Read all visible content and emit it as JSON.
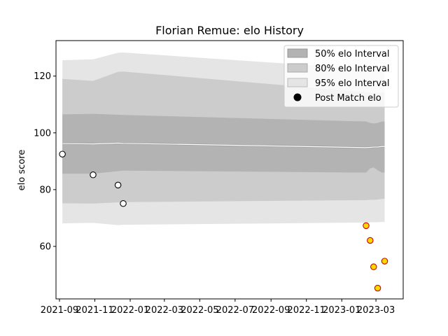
{
  "chart_data": {
    "type": "line",
    "title": "Florian Remue: elo History",
    "ylabel": "elo score",
    "xlabel": "",
    "ylim": [
      41.5,
      132.5
    ],
    "xlim": [
      "2021-08-26",
      "2023-04-17"
    ],
    "yticks": [
      60,
      80,
      100,
      120
    ],
    "xticks": [
      {
        "date": "2021-09-01",
        "label": "2021-09"
      },
      {
        "date": "2021-11-01",
        "label": "2021-11"
      },
      {
        "date": "2022-01-01",
        "label": "2022-01"
      },
      {
        "date": "2022-03-01",
        "label": "2022-03"
      },
      {
        "date": "2022-05-01",
        "label": "2022-05"
      },
      {
        "date": "2022-07-01",
        "label": "2022-07"
      },
      {
        "date": "2022-09-01",
        "label": "2022-09"
      },
      {
        "date": "2022-11-01",
        "label": "2022-11"
      },
      {
        "date": "2023-01-01",
        "label": "2023-01"
      },
      {
        "date": "2023-03-01",
        "label": "2023-03"
      }
    ],
    "grid": false,
    "legend_position": "top-right",
    "legend": [
      {
        "key": "i50",
        "label": "50% elo Interval"
      },
      {
        "key": "i80",
        "label": "80% elo Interval"
      },
      {
        "key": "i95",
        "label": "95% elo Interval"
      },
      {
        "key": "post",
        "label": "Post Match elo"
      }
    ],
    "colors": {
      "i50": "#b3b3b3",
      "i80": "#cccccc",
      "i95": "#e5e5e5",
      "mean_line": "#ffffff",
      "mean_line_shadow": "#999999",
      "marker_edge_old": "#000000",
      "marker_fill_old": "#ffffff",
      "marker_edge_new": "#cc0000",
      "marker_fill_new": "#ffd700"
    },
    "series": {
      "x": [
        "2021-09-06",
        "2021-10-29",
        "2021-12-11",
        "2021-12-20",
        "2023-02-12",
        "2023-02-19",
        "2023-02-25",
        "2023-03-04",
        "2023-03-11",
        "2023-03-16"
      ],
      "mean": [
        96.2,
        96.1,
        96.4,
        96.3,
        94.8,
        94.9,
        95.0,
        95.0,
        95.2,
        95.2
      ],
      "lo50": [
        85.6,
        85.6,
        86.5,
        86.7,
        86.0,
        87.5,
        87.8,
        86.8,
        86.0,
        86.0
      ],
      "hi50": [
        106.5,
        106.7,
        106.4,
        106.3,
        104.0,
        103.5,
        103.3,
        103.5,
        104.0,
        104.0
      ],
      "lo80": [
        75.2,
        75.1,
        75.5,
        75.6,
        76.3,
        76.4,
        76.4,
        76.5,
        76.7,
        76.8
      ],
      "hi80": [
        119.0,
        118.3,
        121.5,
        121.6,
        114.3,
        114.2,
        114.0,
        114.2,
        114.2,
        114.2
      ],
      "lo95": [
        68.1,
        68.3,
        67.5,
        67.6,
        68.4,
        68.5,
        68.5,
        68.5,
        68.6,
        68.6
      ],
      "hi95": [
        125.6,
        125.9,
        128.2,
        128.3,
        122.5,
        122.4,
        122.5,
        122.5,
        122.4,
        122.4
      ]
    },
    "post_match": [
      {
        "date": "2021-09-06",
        "elo": 92.5,
        "recent": false
      },
      {
        "date": "2021-10-29",
        "elo": 85.2,
        "recent": false
      },
      {
        "date": "2021-12-11",
        "elo": 81.6,
        "recent": false
      },
      {
        "date": "2021-12-20",
        "elo": 75.1,
        "recent": false
      },
      {
        "date": "2023-02-12",
        "elo": 67.3,
        "recent": true
      },
      {
        "date": "2023-02-19",
        "elo": 62.1,
        "recent": true
      },
      {
        "date": "2023-02-25",
        "elo": 52.8,
        "recent": true
      },
      {
        "date": "2023-03-04",
        "elo": 45.3,
        "recent": true
      },
      {
        "date": "2023-03-16",
        "elo": 54.8,
        "recent": true
      }
    ]
  }
}
